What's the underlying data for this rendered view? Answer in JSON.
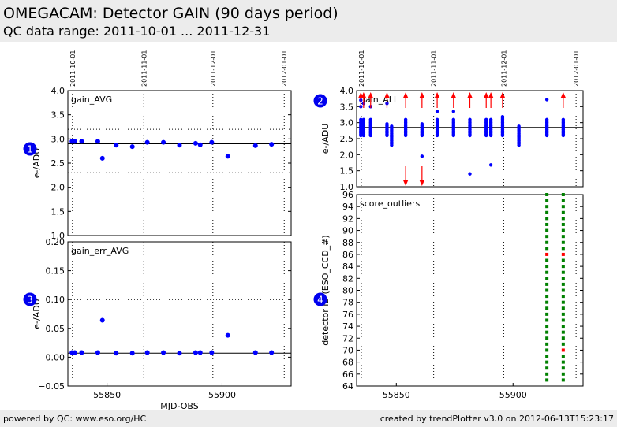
{
  "header": {
    "title": "OMEGACAM: Detector GAIN (90 days period)",
    "subtitle": "QC data range: 2011-10-01 ... 2011-12-31"
  },
  "footer": {
    "left": "powered by QC: www.eso.org/HC",
    "right": "created by trendPlotter v3.0 on 2012-06-13T15:23:17"
  },
  "colors": {
    "points": "#0000ff",
    "outlier": "#ff0000",
    "score_ok": "#008000",
    "score_bad": "#ff0000",
    "badge": "#0000ee"
  },
  "chart_data": [
    {
      "id": "gain_avg",
      "type": "scatter",
      "badge": "1",
      "label": "gain_AVG",
      "ylabel": "e-/ADU",
      "xlabel": "",
      "xlim": [
        55833,
        55930
      ],
      "ylim": [
        1.0,
        4.0
      ],
      "yticks": [
        "1.0",
        "1.5",
        "2.0",
        "2.5",
        "3.0",
        "3.5",
        "4.0"
      ],
      "xticks": [],
      "date_ticks": [
        {
          "x": 55835,
          "label": "2011-10-01"
        },
        {
          "x": 55866,
          "label": "2011-11-01"
        },
        {
          "x": 55896,
          "label": "2011-12-01"
        },
        {
          "x": 55927,
          "label": "2012-01-01"
        }
      ],
      "ref_line": 2.9,
      "limits": [
        2.3,
        3.2
      ],
      "points": [
        {
          "x": 55834.8,
          "y": 2.95
        },
        {
          "x": 55836,
          "y": 2.95
        },
        {
          "x": 55839,
          "y": 2.95
        },
        {
          "x": 55846,
          "y": 2.95
        },
        {
          "x": 55848,
          "y": 2.6
        },
        {
          "x": 55854,
          "y": 2.87
        },
        {
          "x": 55861,
          "y": 2.84
        },
        {
          "x": 55867.5,
          "y": 2.93
        },
        {
          "x": 55874.5,
          "y": 2.93
        },
        {
          "x": 55881.5,
          "y": 2.87
        },
        {
          "x": 55888.5,
          "y": 2.91
        },
        {
          "x": 55890.5,
          "y": 2.88
        },
        {
          "x": 55895.5,
          "y": 2.93
        },
        {
          "x": 55902.5,
          "y": 2.64
        },
        {
          "x": 55914.5,
          "y": 2.86
        },
        {
          "x": 55921.5,
          "y": 2.89
        }
      ]
    },
    {
      "id": "gain_all",
      "type": "scatter",
      "badge": "2",
      "label": "gain_ALL",
      "ylabel": "e-/ADU",
      "xlabel": "",
      "xlim": [
        55833,
        55930
      ],
      "ylim": [
        1.0,
        4.0
      ],
      "yticks": [
        "1.0",
        "1.5",
        "2.0",
        "2.5",
        "3.0",
        "3.5",
        "4.0"
      ],
      "xticks": [],
      "date_ticks": [
        {
          "x": 55835,
          "label": "2011-10-01"
        },
        {
          "x": 55866,
          "label": "2011-11-01"
        },
        {
          "x": 55896,
          "label": "2011-12-01"
        },
        {
          "x": 55927,
          "label": "2012-01-01"
        }
      ],
      "ref_line": 2.85,
      "limits": [],
      "columns": [
        {
          "x": 55834.8,
          "lo": 2.6,
          "hi": 3.1,
          "extra": [
            3.5,
            3.7
          ]
        },
        {
          "x": 55836,
          "lo": 2.6,
          "hi": 3.1,
          "extra": [
            3.6
          ]
        },
        {
          "x": 55839,
          "lo": 2.6,
          "hi": 3.1,
          "extra": [
            3.5
          ]
        },
        {
          "x": 55846,
          "lo": 2.6,
          "hi": 3.0,
          "extra": [
            3.6
          ]
        },
        {
          "x": 55848,
          "lo": 2.3,
          "hi": 2.9,
          "extra": []
        },
        {
          "x": 55854,
          "lo": 2.6,
          "hi": 3.1,
          "extra": []
        },
        {
          "x": 55861,
          "lo": 2.6,
          "hi": 3.0,
          "extra": [
            1.95
          ]
        },
        {
          "x": 55867.5,
          "lo": 2.6,
          "hi": 3.1,
          "extra": [
            3.35
          ]
        },
        {
          "x": 55874.5,
          "lo": 2.6,
          "hi": 3.1,
          "extra": [
            3.35
          ]
        },
        {
          "x": 55881.5,
          "lo": 2.6,
          "hi": 3.1,
          "extra": [
            1.4
          ]
        },
        {
          "x": 55888.5,
          "lo": 2.6,
          "hi": 3.1,
          "extra": []
        },
        {
          "x": 55890.5,
          "lo": 2.6,
          "hi": 3.1,
          "extra": [
            1.68
          ]
        },
        {
          "x": 55895.5,
          "lo": 2.6,
          "hi": 3.2,
          "extra": []
        },
        {
          "x": 55902.5,
          "lo": 2.3,
          "hi": 2.9,
          "extra": []
        },
        {
          "x": 55914.5,
          "lo": 2.6,
          "hi": 3.1,
          "extra": [
            3.72
          ]
        },
        {
          "x": 55921.5,
          "lo": 2.6,
          "hi": 3.1,
          "extra": []
        }
      ],
      "outliers_up": [
        55834.8,
        55836,
        55839,
        55846,
        55854,
        55861,
        55867.5,
        55874.5,
        55881.5,
        55888.5,
        55890.5,
        55895.5,
        55921.5
      ],
      "outliers_down": [
        55854,
        55861
      ]
    },
    {
      "id": "gain_err_avg",
      "type": "scatter",
      "badge": "3",
      "label": "gain_err_AVG",
      "ylabel": "e-/ADU",
      "xlabel": "MJD-OBS",
      "xlim": [
        55833,
        55930
      ],
      "ylim": [
        -0.05,
        0.2
      ],
      "yticks": [
        "−0.05",
        "0.00",
        "0.05",
        "0.10",
        "0.15",
        "0.20"
      ],
      "xticks": [
        {
          "x": 55850,
          "label": "55850"
        },
        {
          "x": 55900,
          "label": "55900"
        }
      ],
      "date_ticks": [],
      "date_grid": [
        55835,
        55866,
        55896,
        55927
      ],
      "ref_line": 0.007,
      "limits": [
        0.1
      ],
      "points": [
        {
          "x": 55834.8,
          "y": 0.008
        },
        {
          "x": 55836,
          "y": 0.008
        },
        {
          "x": 55839,
          "y": 0.008
        },
        {
          "x": 55846,
          "y": 0.008
        },
        {
          "x": 55848,
          "y": 0.064
        },
        {
          "x": 55854,
          "y": 0.007
        },
        {
          "x": 55861,
          "y": 0.007
        },
        {
          "x": 55867.5,
          "y": 0.008
        },
        {
          "x": 55874.5,
          "y": 0.008
        },
        {
          "x": 55881.5,
          "y": 0.007
        },
        {
          "x": 55888.5,
          "y": 0.008
        },
        {
          "x": 55890.5,
          "y": 0.008
        },
        {
          "x": 55895.5,
          "y": 0.008
        },
        {
          "x": 55902.5,
          "y": 0.038
        },
        {
          "x": 55914.5,
          "y": 0.008
        },
        {
          "x": 55921.5,
          "y": 0.008
        }
      ]
    },
    {
      "id": "score_outliers",
      "type": "scatter",
      "badge": "4",
      "label": "score_outliers",
      "ylabel": "detector ID (ESO_CCD_#)",
      "xlabel": "",
      "xlim": [
        55833,
        55930
      ],
      "ylim": [
        64,
        96
      ],
      "yticks": [
        "64",
        "66",
        "68",
        "70",
        "72",
        "74",
        "76",
        "78",
        "80",
        "82",
        "84",
        "86",
        "88",
        "90",
        "92",
        "94",
        "96"
      ],
      "xticks": [
        {
          "x": 55850,
          "label": "55850"
        },
        {
          "x": 55900,
          "label": "55900"
        }
      ],
      "date_ticks": [],
      "date_grid": [
        55835,
        55866,
        55896,
        55927
      ],
      "score_columns": [
        55914.5,
        55921.5
      ],
      "ccd_range": [
        65,
        96
      ],
      "bad_points": [
        {
          "x": 55914.5,
          "y": 86
        },
        {
          "x": 55921.5,
          "y": 86
        },
        {
          "x": 55921.5,
          "y": 70
        }
      ]
    }
  ]
}
